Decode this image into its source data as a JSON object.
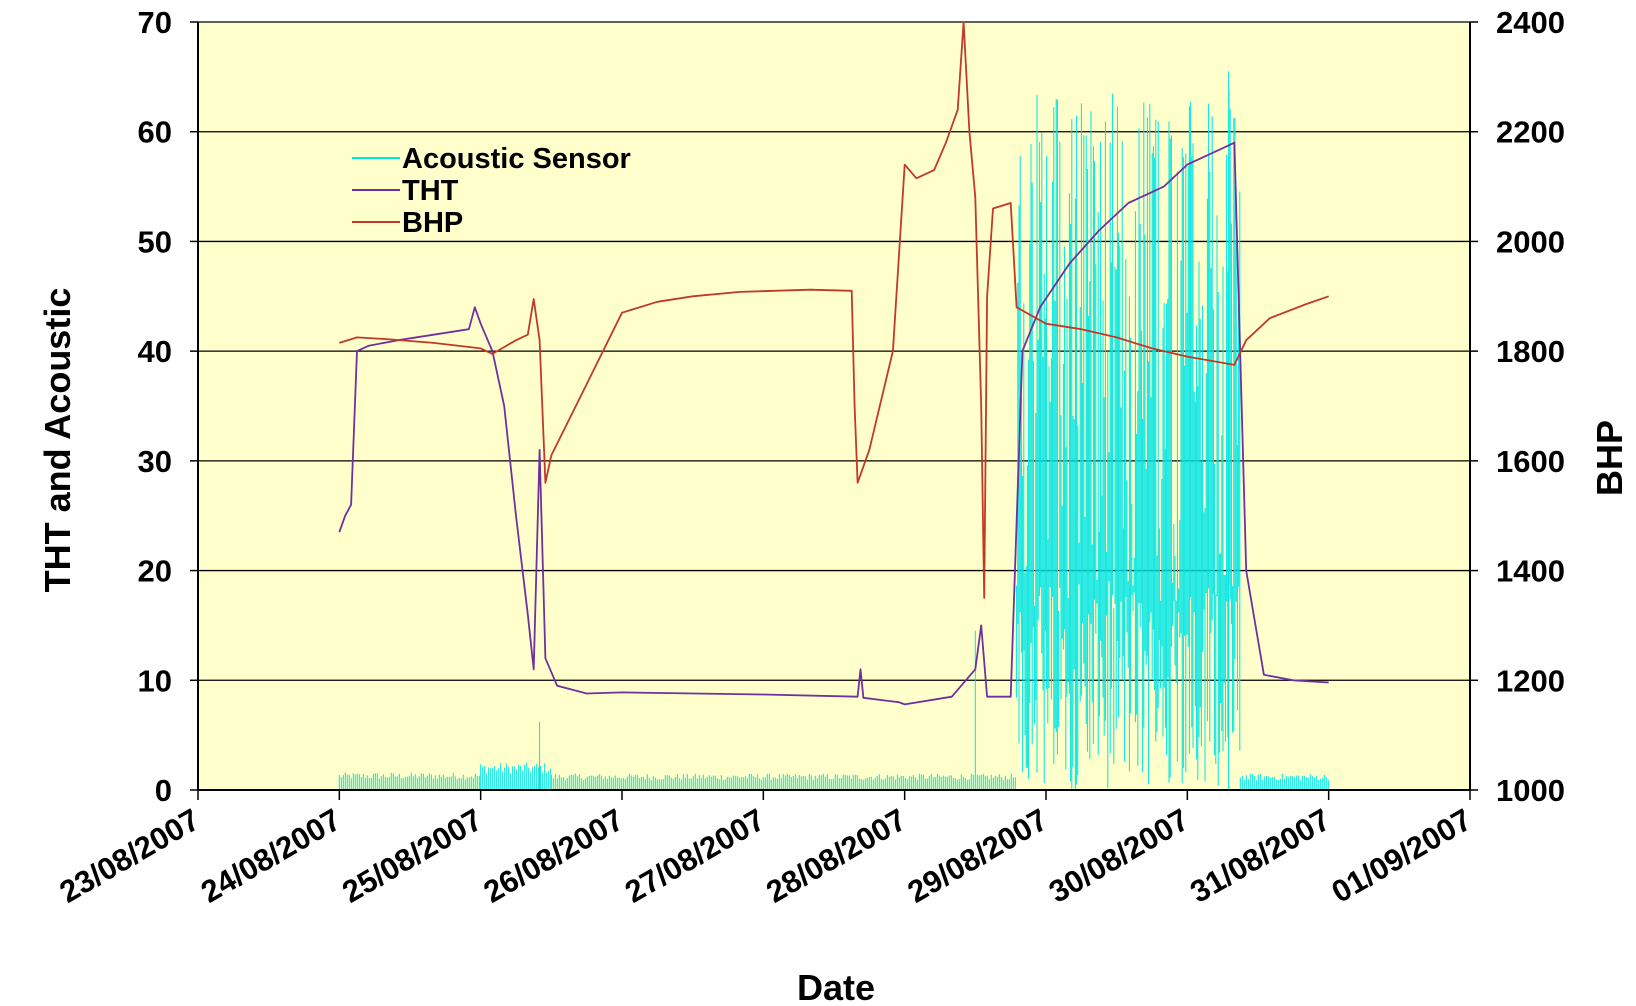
{
  "chart_data": {
    "type": "line",
    "xlabel": "Date",
    "ylabel_left": "THT and Acoustic",
    "ylabel_right": "BHP",
    "xlim": [
      "23/08/2007",
      "01/09/2007"
    ],
    "ylim_left": [
      0,
      70
    ],
    "ylim_right": [
      1000,
      2400
    ],
    "x_ticks": [
      "23/08/2007",
      "24/08/2007",
      "25/08/2007",
      "26/08/2007",
      "27/08/2007",
      "28/08/2007",
      "29/08/2007",
      "30/08/2007",
      "31/08/2007",
      "01/09/2007"
    ],
    "y_ticks_left": [
      "0",
      "10",
      "20",
      "30",
      "40",
      "50",
      "60",
      "70"
    ],
    "y_ticks_right": [
      "1000",
      "1200",
      "1400",
      "1600",
      "1800",
      "2000",
      "2200",
      "2400"
    ],
    "grid": "horizontal",
    "background": "#ffffcc",
    "legend": {
      "placement": "top-left",
      "entries": [
        "Acoustic Sensor",
        "THT",
        "BHP"
      ]
    },
    "series": [
      {
        "name": "Acoustic Sensor",
        "axis": "left",
        "color": "#00e5e5",
        "note_shape": "noisy band",
        "segments": [
          {
            "x_start": "24/08/2007 00:00",
            "x_end": "25/08/2007 00:00",
            "low": 0,
            "high": 1.6
          },
          {
            "x_start": "25/08/2007 00:00",
            "x_end": "25/08/2007 12:00",
            "low": 0,
            "high": 2.5
          },
          {
            "x_start": "25/08/2007 12:00",
            "x_end": "28/08/2007 12:00",
            "low": 0,
            "high": 1.5
          },
          {
            "x_start": "28/08/2007 12:00",
            "x_end": "28/08/2007 19:00",
            "low": 0,
            "high": 1.5
          },
          {
            "x_start": "28/08/2007 19:00",
            "x_end": "30/08/2007 09:00",
            "low": 0,
            "high": 64
          },
          {
            "x_start": "30/08/2007 09:00",
            "x_end": "31/08/2007 00:00",
            "low": 0,
            "high": 1.5
          }
        ],
        "spikes": [
          {
            "x": "25/08/2007 10:00",
            "y": 6.2
          },
          {
            "x": "28/08/2007 12:00",
            "y": 14.5
          },
          {
            "x": "30/08/2007 07:00",
            "y": 65.5
          }
        ]
      },
      {
        "name": "THT",
        "axis": "left",
        "color": "#7030a0",
        "points": [
          [
            "24/08/2007 00:00",
            23.5
          ],
          [
            "24/08/2007 01:00",
            25
          ],
          [
            "24/08/2007 02:00",
            26
          ],
          [
            "24/08/2007 03:00",
            40
          ],
          [
            "24/08/2007 05:00",
            40.5
          ],
          [
            "24/08/2007 10:00",
            41
          ],
          [
            "24/08/2007 16:00",
            41.5
          ],
          [
            "24/08/2007 22:00",
            42
          ],
          [
            "24/08/2007 23:00",
            44
          ],
          [
            "25/08/2007 00:00",
            42.5
          ],
          [
            "25/08/2007 02:00",
            40
          ],
          [
            "25/08/2007 04:00",
            35
          ],
          [
            "25/08/2007 06:00",
            25
          ],
          [
            "25/08/2007 08:00",
            16
          ],
          [
            "25/08/2007 09:00",
            11
          ],
          [
            "25/08/2007 10:00",
            31
          ],
          [
            "25/08/2007 11:00",
            12
          ],
          [
            "25/08/2007 13:00",
            9.5
          ],
          [
            "25/08/2007 18:00",
            8.8
          ],
          [
            "26/08/2007 00:00",
            8.9
          ],
          [
            "27/08/2007 00:00",
            8.7
          ],
          [
            "27/08/2007 16:00",
            8.5
          ],
          [
            "27/08/2007 16:30",
            11
          ],
          [
            "27/08/2007 17:00",
            8.4
          ],
          [
            "27/08/2007 23:00",
            8.0
          ],
          [
            "28/08/2007 00:00",
            7.8
          ],
          [
            "28/08/2007 08:00",
            8.5
          ],
          [
            "28/08/2007 12:00",
            11
          ],
          [
            "28/08/2007 13:00",
            15
          ],
          [
            "28/08/2007 14:00",
            8.5
          ],
          [
            "28/08/2007 18:00",
            8.5
          ],
          [
            "28/08/2007 20:00",
            40
          ],
          [
            "28/08/2007 23:00",
            44
          ],
          [
            "29/08/2007 04:00",
            48
          ],
          [
            "29/08/2007 09:00",
            51
          ],
          [
            "29/08/2007 14:00",
            53.5
          ],
          [
            "29/08/2007 20:00",
            55
          ],
          [
            "30/08/2007 00:00",
            57
          ],
          [
            "30/08/2007 06:00",
            58.5
          ],
          [
            "30/08/2007 08:00",
            59
          ],
          [
            "30/08/2007 10:00",
            20
          ],
          [
            "30/08/2007 13:00",
            10.5
          ],
          [
            "30/08/2007 18:00",
            10
          ],
          [
            "31/08/2007 00:00",
            9.8
          ]
        ]
      },
      {
        "name": "BHP",
        "axis": "right",
        "color": "#c0392b",
        "points": [
          [
            "24/08/2007 00:00",
            1815
          ],
          [
            "24/08/2007 03:00",
            1825
          ],
          [
            "24/08/2007 08:00",
            1822
          ],
          [
            "24/08/2007 16:00",
            1815
          ],
          [
            "25/08/2007 00:00",
            1805
          ],
          [
            "25/08/2007 02:00",
            1795
          ],
          [
            "25/08/2007 06:00",
            1820
          ],
          [
            "25/08/2007 08:00",
            1830
          ],
          [
            "25/08/2007 09:00",
            1895
          ],
          [
            "25/08/2007 10:00",
            1820
          ],
          [
            "25/08/2007 11:00",
            1560
          ],
          [
            "25/08/2007 12:00",
            1610
          ],
          [
            "25/08/2007 18:00",
            1740
          ],
          [
            "26/08/2007 00:00",
            1870
          ],
          [
            "26/08/2007 06:00",
            1890
          ],
          [
            "26/08/2007 12:00",
            1900
          ],
          [
            "26/08/2007 20:00",
            1908
          ],
          [
            "27/08/2007 08:00",
            1912
          ],
          [
            "27/08/2007 15:00",
            1910
          ],
          [
            "27/08/2007 15:30",
            1700
          ],
          [
            "27/08/2007 16:00",
            1560
          ],
          [
            "27/08/2007 18:00",
            1620
          ],
          [
            "27/08/2007 22:00",
            1800
          ],
          [
            "28/08/2007 00:00",
            2140
          ],
          [
            "28/08/2007 02:00",
            2115
          ],
          [
            "28/08/2007 05:00",
            2130
          ],
          [
            "28/08/2007 07:00",
            2180
          ],
          [
            "28/08/2007 09:00",
            2240
          ],
          [
            "28/08/2007 10:00",
            2400
          ],
          [
            "28/08/2007 11:00",
            2200
          ],
          [
            "28/08/2007 12:00",
            2080
          ],
          [
            "28/08/2007 13:00",
            1700
          ],
          [
            "28/08/2007 13:30",
            1350
          ],
          [
            "28/08/2007 14:00",
            1900
          ],
          [
            "28/08/2007 15:00",
            2060
          ],
          [
            "28/08/2007 18:00",
            2070
          ],
          [
            "28/08/2007 19:00",
            1880
          ],
          [
            "29/08/2007 00:00",
            1850
          ],
          [
            "29/08/2007 06:00",
            1840
          ],
          [
            "29/08/2007 12:00",
            1825
          ],
          [
            "29/08/2007 18:00",
            1805
          ],
          [
            "30/08/2007 00:00",
            1790
          ],
          [
            "30/08/2007 08:00",
            1775
          ],
          [
            "30/08/2007 10:00",
            1820
          ],
          [
            "30/08/2007 14:00",
            1860
          ],
          [
            "30/08/2007 20:00",
            1885
          ],
          [
            "31/08/2007 00:00",
            1900
          ]
        ]
      }
    ]
  }
}
